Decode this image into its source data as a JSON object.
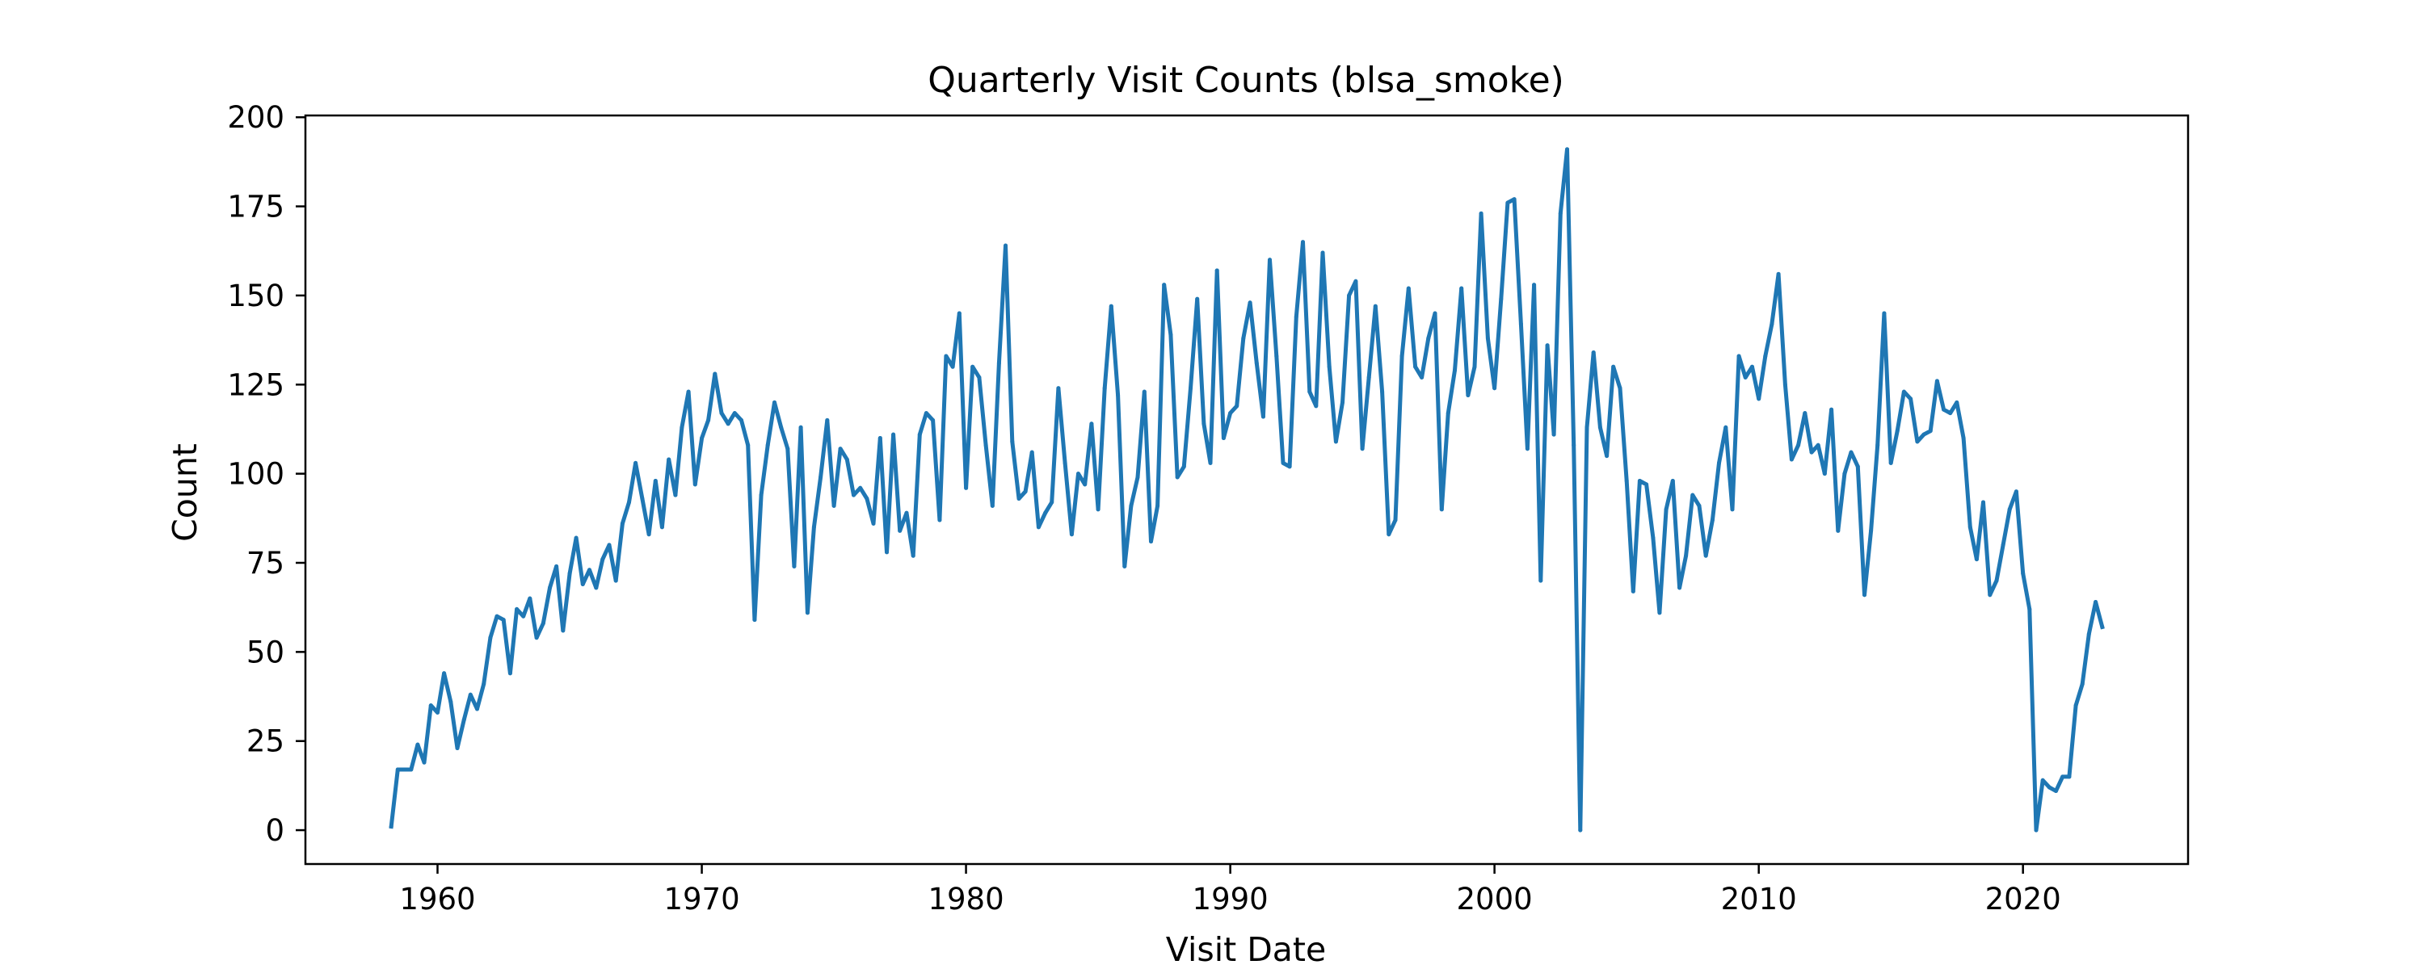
{
  "chart_data": {
    "type": "line",
    "title": "Quarterly Visit Counts (blsa_smoke)",
    "xlabel": "Visit Date",
    "ylabel": "Count",
    "x_axis": {
      "kind": "date",
      "range": [
        "1955-01-01",
        "2026-04-01"
      ],
      "ticks": [
        {
          "value": "1960-01-01",
          "label": "1960"
        },
        {
          "value": "1970-01-01",
          "label": "1970"
        },
        {
          "value": "1980-01-01",
          "label": "1980"
        },
        {
          "value": "1990-01-01",
          "label": "1990"
        },
        {
          "value": "2000-01-01",
          "label": "2000"
        },
        {
          "value": "2010-01-01",
          "label": "2010"
        },
        {
          "value": "2020-01-01",
          "label": "2020"
        }
      ]
    },
    "y_axis": {
      "range": [
        -9.5,
        200.5
      ],
      "ticks": [
        0,
        25,
        50,
        75,
        100,
        125,
        150,
        175,
        200
      ]
    },
    "grid": false,
    "series_color": "#1f77b4",
    "series": [
      {
        "x": [
          "1958-04-01",
          "1958-07-01",
          "1958-10-01",
          "1959-01-01",
          "1959-04-01",
          "1959-07-01",
          "1959-10-01",
          "1960-01-01",
          "1960-04-01",
          "1960-07-01",
          "1960-10-01",
          "1961-01-01",
          "1961-04-01",
          "1961-07-01",
          "1961-10-01",
          "1962-01-01",
          "1962-04-01",
          "1962-07-01",
          "1962-10-01",
          "1963-01-01",
          "1963-04-01",
          "1963-07-01",
          "1963-10-01",
          "1964-01-01",
          "1964-04-01",
          "1964-07-01",
          "1964-10-01",
          "1965-01-01",
          "1965-04-01",
          "1965-07-01",
          "1965-10-01",
          "1966-01-01",
          "1966-04-01",
          "1966-07-01",
          "1966-10-01",
          "1967-01-01",
          "1967-04-01",
          "1967-07-01",
          "1967-10-01",
          "1968-01-01",
          "1968-04-01",
          "1968-07-01",
          "1968-10-01",
          "1969-01-01",
          "1969-04-01",
          "1969-07-01",
          "1969-10-01",
          "1970-01-01",
          "1970-04-01",
          "1970-07-01",
          "1970-10-01",
          "1971-01-01",
          "1971-04-01",
          "1971-07-01",
          "1971-10-01",
          "1972-01-01",
          "1972-04-01",
          "1972-07-01",
          "1972-10-01",
          "1973-01-01",
          "1973-04-01",
          "1973-07-01",
          "1973-10-01",
          "1974-01-01",
          "1974-04-01",
          "1974-07-01",
          "1974-10-01",
          "1975-01-01",
          "1975-04-01",
          "1975-07-01",
          "1975-10-01",
          "1976-01-01",
          "1976-04-01",
          "1976-07-01",
          "1976-10-01",
          "1977-01-01",
          "1977-04-01",
          "1977-07-01",
          "1977-10-01",
          "1978-01-01",
          "1978-04-01",
          "1978-07-01",
          "1978-10-01",
          "1979-01-01",
          "1979-04-01",
          "1979-07-01",
          "1979-10-01",
          "1980-01-01",
          "1980-04-01",
          "1980-07-01",
          "1980-10-01",
          "1981-01-01",
          "1981-04-01",
          "1981-07-01",
          "1981-10-01",
          "1982-01-01",
          "1982-04-01",
          "1982-07-01",
          "1982-10-01",
          "1983-01-01",
          "1983-04-01",
          "1983-07-01",
          "1983-10-01",
          "1984-01-01",
          "1984-04-01",
          "1984-07-01",
          "1984-10-01",
          "1985-01-01",
          "1985-04-01",
          "1985-07-01",
          "1985-10-01",
          "1986-01-01",
          "1986-04-01",
          "1986-07-01",
          "1986-10-01",
          "1987-01-01",
          "1987-04-01",
          "1987-07-01",
          "1987-10-01",
          "1988-01-01",
          "1988-04-01",
          "1988-07-01",
          "1988-10-01",
          "1989-01-01",
          "1989-04-01",
          "1989-07-01",
          "1989-10-01",
          "1990-01-01",
          "1990-04-01",
          "1990-07-01",
          "1990-10-01",
          "1991-01-01",
          "1991-04-01",
          "1991-07-01",
          "1991-10-01",
          "1992-01-01",
          "1992-04-01",
          "1992-07-01",
          "1992-10-01",
          "1993-01-01",
          "1993-04-01",
          "1993-07-01",
          "1993-10-01",
          "1994-01-01",
          "1994-04-01",
          "1994-07-01",
          "1994-10-01",
          "1995-01-01",
          "1995-04-01",
          "1995-07-01",
          "1995-10-01",
          "1996-01-01",
          "1996-04-01",
          "1996-07-01",
          "1996-10-01",
          "1997-01-01",
          "1997-04-01",
          "1997-07-01",
          "1997-10-01",
          "1998-01-01",
          "1998-04-01",
          "1998-07-01",
          "1998-10-01",
          "1999-01-01",
          "1999-04-01",
          "1999-07-01",
          "1999-10-01",
          "2000-01-01",
          "2000-04-01",
          "2000-07-01",
          "2000-10-01",
          "2001-01-01",
          "2001-04-01",
          "2001-07-01",
          "2001-10-01",
          "2002-01-01",
          "2002-04-01",
          "2002-07-01",
          "2002-10-01",
          "2003-01-01",
          "2003-04-01",
          "2003-07-01",
          "2003-10-01",
          "2004-01-01",
          "2004-04-01",
          "2004-07-01",
          "2004-10-01",
          "2005-01-01",
          "2005-04-01",
          "2005-07-01",
          "2005-10-01",
          "2006-01-01",
          "2006-04-01",
          "2006-07-01",
          "2006-10-01",
          "2007-01-01",
          "2007-04-01",
          "2007-07-01",
          "2007-10-01",
          "2008-01-01",
          "2008-04-01",
          "2008-07-01",
          "2008-10-01",
          "2009-01-01",
          "2009-04-01",
          "2009-07-01",
          "2009-10-01",
          "2010-01-01",
          "2010-04-01",
          "2010-07-01",
          "2010-10-01",
          "2011-01-01",
          "2011-04-01",
          "2011-07-01",
          "2011-10-01",
          "2012-01-01",
          "2012-04-01",
          "2012-07-01",
          "2012-10-01",
          "2013-01-01",
          "2013-04-01",
          "2013-07-01",
          "2013-10-01",
          "2014-01-01",
          "2014-04-01",
          "2014-07-01",
          "2014-10-01",
          "2015-01-01",
          "2015-04-01",
          "2015-07-01",
          "2015-10-01",
          "2016-01-01",
          "2016-04-01",
          "2016-07-01",
          "2016-10-01",
          "2017-01-01",
          "2017-04-01",
          "2017-07-01",
          "2017-10-01",
          "2018-01-01",
          "2018-04-01",
          "2018-07-01",
          "2018-10-01",
          "2019-01-01",
          "2019-04-01",
          "2019-07-01",
          "2019-10-01",
          "2020-01-01",
          "2020-04-01",
          "2020-07-01",
          "2020-10-01",
          "2021-01-01",
          "2021-04-01",
          "2021-07-01",
          "2021-10-01",
          "2022-01-01",
          "2022-04-01",
          "2022-07-01",
          "2022-10-01",
          "2023-01-01"
        ],
        "y": [
          1,
          17,
          17,
          17,
          24,
          19,
          35,
          33,
          44,
          36,
          23,
          31,
          38,
          34,
          41,
          54,
          60,
          59,
          44,
          62,
          60,
          65,
          54,
          58,
          68,
          74,
          56,
          72,
          82,
          69,
          73,
          68,
          76,
          80,
          70,
          86,
          92,
          103,
          93,
          83,
          98,
          85,
          104,
          94,
          113,
          123,
          97,
          110,
          115,
          128,
          117,
          114,
          117,
          115,
          108,
          59,
          94,
          108,
          120,
          113,
          107,
          74,
          113,
          61,
          85,
          99,
          115,
          91,
          107,
          104,
          94,
          96,
          93,
          86,
          110,
          78,
          111,
          84,
          89,
          77,
          111,
          117,
          115,
          87,
          133,
          130,
          145,
          96,
          130,
          127,
          108,
          91,
          131,
          164,
          109,
          93,
          95,
          106,
          85,
          89,
          92,
          124,
          103,
          83,
          100,
          97,
          114,
          90,
          124,
          147,
          122,
          74,
          91,
          99,
          123,
          81,
          91,
          153,
          139,
          99,
          102,
          124,
          149,
          114,
          103,
          157,
          110,
          117,
          119,
          138,
          148,
          131,
          116,
          160,
          133,
          103,
          102,
          144,
          165,
          123,
          119,
          162,
          130,
          109,
          120,
          150,
          154,
          107,
          127,
          147,
          123,
          83,
          87,
          133,
          152,
          130,
          127,
          138,
          145,
          90,
          117,
          129,
          152,
          122,
          130,
          173,
          138,
          124,
          149,
          176,
          177,
          142,
          107,
          153,
          70,
          136,
          111,
          173,
          191,
          108,
          0,
          113,
          134,
          113,
          105,
          130,
          124,
          98,
          67,
          98,
          97,
          82,
          61,
          90,
          98,
          68,
          77,
          94,
          91,
          77,
          87,
          103,
          113,
          90,
          133,
          127,
          130,
          121,
          133,
          142,
          156,
          125,
          104,
          108,
          117,
          106,
          108,
          100,
          118,
          84,
          100,
          106,
          102,
          66,
          84,
          108,
          145,
          103,
          112,
          123,
          121,
          109,
          111,
          112,
          126,
          118,
          117,
          120,
          110,
          85,
          76,
          92,
          66,
          70,
          80,
          90,
          95,
          72,
          62,
          0,
          14,
          12,
          11,
          15,
          15,
          35,
          41,
          55,
          64,
          57
        ]
      }
    ]
  }
}
